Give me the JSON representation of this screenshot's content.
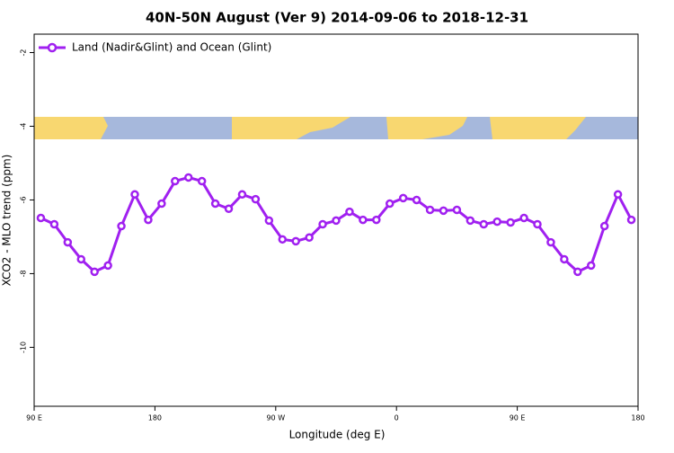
{
  "chart_data": {
    "type": "line",
    "title": "40N-50N August (Ver 9)   2014-09-06 to 2018-12-31",
    "x_label": "Longitude (deg E)",
    "y_label": "XCO2 - MLO trend (ppm)",
    "x": [
      95,
      105,
      115,
      125,
      135,
      145,
      155,
      165,
      175,
      185,
      195,
      205,
      215,
      225,
      235,
      245,
      255,
      265,
      275,
      285,
      295,
      305,
      315,
      325,
      335,
      345,
      355,
      365,
      375,
      385,
      395,
      405,
      415,
      425,
      435,
      445,
      455,
      465,
      475,
      485,
      495,
      505,
      515,
      525,
      535
    ],
    "series": [
      {
        "name": "Land (Nadir&Glint) and Ocean (Glint)",
        "color": "#a020f0",
        "values": [
          -6.49,
          -6.66,
          -7.15,
          -7.61,
          -7.95,
          -7.78,
          -6.71,
          -5.85,
          -6.54,
          -6.1,
          -5.49,
          -5.39,
          -5.49,
          -6.1,
          -6.24,
          -5.85,
          -5.98,
          -6.56,
          -7.07,
          -7.12,
          -7.02,
          -6.66,
          -6.56,
          -6.32,
          -6.54,
          -6.54,
          -6.1,
          -5.95,
          -6.0,
          -6.27,
          -6.29,
          -6.27,
          -6.56,
          -6.66,
          -6.59,
          -6.61,
          -6.49,
          -6.66,
          -7.15,
          -7.61,
          -7.95,
          -7.78,
          -6.71,
          -5.85,
          -6.54
        ]
      }
    ],
    "xlim": [
      90,
      540
    ],
    "xticks": [
      {
        "value": 90,
        "label": "90 E"
      },
      180,
      {
        "value": 270,
        "label": "90 W"
      },
      {
        "value": 360,
        "label": "0"
      },
      {
        "value": 450,
        "label": "90 E"
      },
      {
        "value": 540,
        "label": "180"
      }
    ],
    "ylim": [
      -11.6,
      -1.5
    ],
    "yticks": [
      -2,
      -4,
      -6,
      -8,
      -10
    ],
    "legend": "top-left",
    "grid": false
  }
}
